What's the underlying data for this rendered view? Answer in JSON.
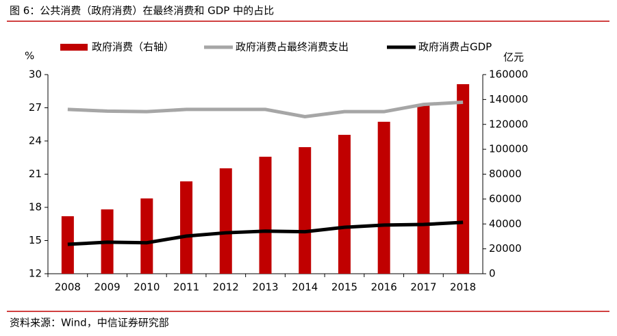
{
  "chart_data": {
    "type": "bar",
    "title": "图 6：公共消费（政府消费）在最终消费和 GDP 中的占比",
    "source": "资料来源：Wind，中信证券研究部",
    "ylabel": "%",
    "y2label": "亿元",
    "categories": [
      "2008",
      "2009",
      "2010",
      "2011",
      "2012",
      "2013",
      "2014",
      "2015",
      "2016",
      "2017",
      "2018"
    ],
    "series": [
      {
        "name": "政府消费（右轴）",
        "type": "bar",
        "axis": "y2",
        "color": "#c00000",
        "values": [
          46200,
          51700,
          60500,
          74200,
          84700,
          94000,
          101700,
          111600,
          122100,
          135300,
          152300
        ]
      },
      {
        "name": "政府消费占最终消费支出",
        "type": "line",
        "color": "#a6a6a6",
        "values": [
          26.85,
          26.7,
          26.65,
          26.85,
          26.85,
          26.85,
          26.2,
          26.65,
          26.65,
          27.3,
          27.5
        ]
      },
      {
        "name": "政府消费占GDP",
        "type": "line",
        "color": "#000000",
        "values": [
          14.66,
          14.85,
          14.8,
          15.4,
          15.7,
          15.85,
          15.8,
          16.2,
          16.4,
          16.45,
          16.65
        ]
      }
    ],
    "ylim": [
      12,
      30
    ],
    "yticks": [
      12,
      15,
      18,
      21,
      24,
      27,
      30
    ],
    "y2lim": [
      0,
      160000
    ],
    "y2ticks": [
      0,
      20000,
      40000,
      60000,
      80000,
      100000,
      120000,
      140000,
      160000
    ],
    "legend": "top"
  }
}
